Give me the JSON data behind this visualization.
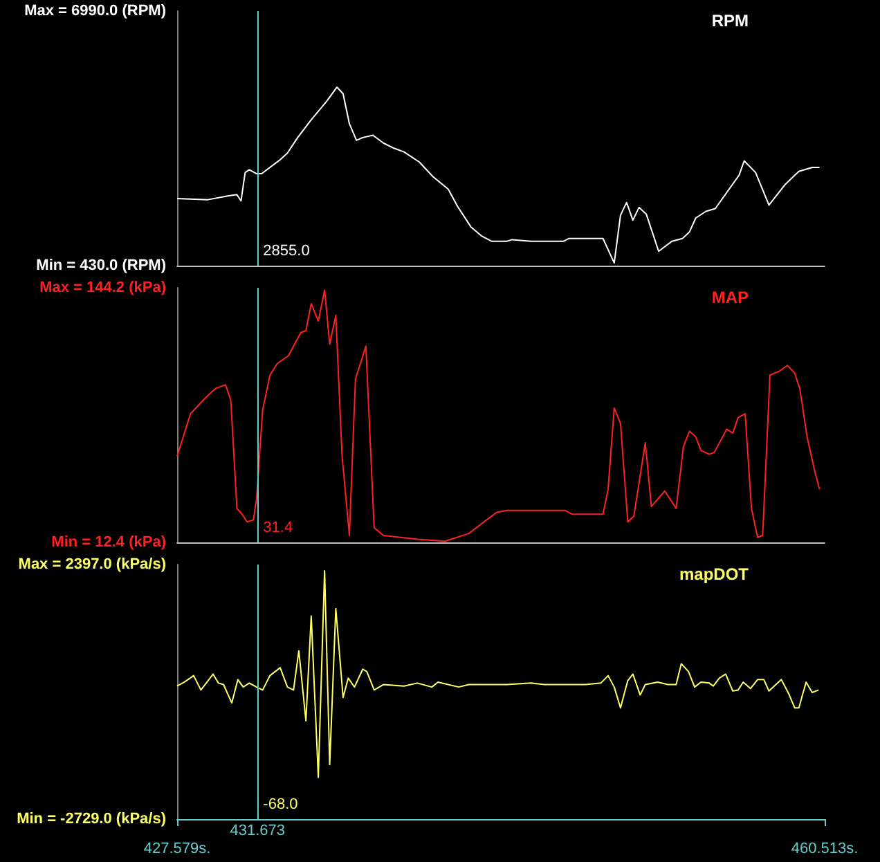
{
  "chart_data": [
    {
      "type": "line",
      "title": "RPM",
      "x": [
        427.58,
        429.15,
        430.2,
        430.62,
        430.83,
        431.04,
        431.25,
        431.62,
        431.88,
        432.82,
        433.19,
        433.71,
        434.4,
        435.18,
        435.71,
        436.02,
        436.34,
        436.7,
        437.02,
        437.54,
        438.07,
        438.59,
        439.12,
        439.9,
        440.58,
        441.37,
        441.84,
        442.52,
        443.05,
        443.57,
        444.36,
        444.62,
        445.57,
        447.24,
        447.51,
        449.24,
        449.81,
        450.13,
        450.44,
        450.76,
        451.07,
        451.44,
        452.07,
        452.75,
        453.28,
        453.64,
        453.96,
        454.48,
        454.95,
        456.16,
        456.42,
        457.0,
        457.68,
        458.52,
        459.2,
        459.88,
        460.25
      ],
      "series": [
        {
          "color": "#ffffff",
          "values": [
            2160,
            2130,
            2230,
            2260,
            2100,
            2830,
            2900,
            2800,
            2800,
            3160,
            3330,
            3730,
            4190,
            4660,
            5030,
            4860,
            4090,
            3660,
            3730,
            3790,
            3590,
            3460,
            3360,
            3100,
            2730,
            2400,
            1960,
            1430,
            1200,
            1060,
            1060,
            1100,
            1060,
            1060,
            1130,
            1130,
            500,
            1730,
            2060,
            1600,
            1930,
            1760,
            800,
            1060,
            1130,
            1300,
            1660,
            1830,
            1900,
            2760,
            3130,
            2830,
            1990,
            2530,
            2860,
            2960,
            2960
          ]
        }
      ],
      "xlim": [
        427.579,
        460.513
      ],
      "ylim": [
        430,
        6990
      ],
      "yticks": [
        {
          "value": 430,
          "label": "Min = 430.0 (RPM)"
        },
        {
          "value": 6990,
          "label": "Max = 6990.0 (RPM)"
        }
      ],
      "tick_labels": "y",
      "ref_lines": [
        {
          "axis": "x",
          "value": 431.673,
          "color": "#66cccc"
        }
      ],
      "annotations": [
        "2855.0"
      ]
    },
    {
      "type": "line",
      "title": "MAP",
      "x": [
        427.58,
        428.26,
        429.0,
        429.52,
        430.04,
        430.31,
        430.62,
        430.88,
        431.14,
        431.46,
        431.62,
        431.93,
        432.3,
        432.67,
        433.24,
        433.87,
        434.13,
        434.4,
        434.76,
        435.08,
        435.34,
        435.65,
        435.97,
        436.34,
        436.65,
        437.18,
        437.6,
        438.07,
        438.96,
        439.8,
        441.21,
        442.42,
        443.31,
        443.84,
        444.36,
        447.3,
        447.66,
        449.24,
        449.5,
        449.81,
        450.13,
        450.5,
        450.81,
        451.39,
        451.7,
        452.38,
        452.96,
        453.33,
        453.64,
        453.96,
        454.22,
        454.64,
        454.9,
        455.53,
        455.84,
        456.11,
        456.47,
        456.79,
        457.1,
        457.36,
        457.73,
        458.2,
        458.62,
        458.99,
        459.25,
        459.62,
        459.99,
        460.25
      ],
      "series": [
        {
          "color": "#ff2020",
          "values": [
            57,
            79,
            87,
            92,
            94,
            86,
            30,
            27,
            23,
            24,
            35,
            81,
            99,
            105,
            109,
            121,
            122,
            136,
            127,
            143,
            115,
            130,
            57,
            16,
            97,
            114,
            20,
            16,
            15,
            14,
            13,
            17,
            24,
            28,
            29,
            29,
            27,
            27,
            40,
            82,
            74,
            23,
            26,
            64,
            31,
            39,
            30,
            62,
            70,
            67,
            60,
            58,
            59,
            71,
            69,
            77,
            79,
            30,
            15,
            16,
            99,
            101,
            104,
            100,
            92,
            67,
            50,
            40
          ]
        }
      ],
      "xlim": [
        427.579,
        460.513
      ],
      "ylim": [
        12.4,
        144.2
      ],
      "yticks": [
        {
          "value": 12.4,
          "label": "Min = 12.4 (kPa)"
        },
        {
          "value": 144.2,
          "label": "Max = 144.2 (kPa)"
        }
      ],
      "tick_labels": "y",
      "ref_lines": [
        {
          "axis": "x",
          "value": 431.673,
          "color": "#66cccc"
        }
      ],
      "annotations": [
        "31.4"
      ]
    },
    {
      "type": "line",
      "title": "mapDOT",
      "x": [
        427.58,
        427.95,
        428.42,
        428.79,
        429.41,
        429.68,
        429.94,
        430.36,
        430.67,
        430.94,
        431.25,
        431.62,
        431.93,
        432.3,
        432.82,
        433.19,
        433.5,
        433.77,
        434.13,
        434.4,
        434.76,
        435.08,
        435.34,
        435.65,
        436.02,
        436.28,
        436.6,
        437.02,
        437.23,
        437.6,
        438.07,
        439.12,
        439.8,
        440.53,
        440.85,
        441.9,
        442.42,
        444.36,
        445.57,
        446.25,
        447.3,
        448.35,
        449.13,
        449.5,
        449.81,
        450.13,
        450.5,
        450.76,
        451.13,
        451.39,
        452.02,
        452.54,
        452.96,
        453.22,
        453.59,
        453.9,
        454.22,
        454.64,
        454.85,
        455.16,
        455.48,
        455.84,
        456.11,
        456.37,
        456.74,
        457.1,
        457.42,
        457.68,
        458.31,
        458.68,
        458.99,
        459.2,
        459.57,
        459.88,
        460.2
      ],
      "series": [
        {
          "color": "#ffff66",
          "values": [
            -50,
            30,
            160,
            -130,
            190,
            10,
            -20,
            -390,
            80,
            -70,
            10,
            -70,
            -130,
            160,
            320,
            -70,
            -130,
            660,
            -750,
            1360,
            -1890,
            2270,
            -1630,
            1510,
            -280,
            110,
            -70,
            290,
            240,
            -130,
            -20,
            -50,
            10,
            -70,
            30,
            -70,
            -20,
            -20,
            10,
            -20,
            -20,
            -20,
            10,
            160,
            -70,
            -490,
            60,
            190,
            -230,
            -20,
            30,
            -20,
            -20,
            400,
            240,
            -70,
            30,
            10,
            -50,
            110,
            190,
            -150,
            -130,
            30,
            -100,
            80,
            80,
            -150,
            80,
            -200,
            -490,
            -490,
            30,
            -180,
            -130
          ]
        }
      ],
      "xlim": [
        427.579,
        460.513
      ],
      "ylim": [
        -2729,
        2397
      ],
      "xticks": [
        {
          "value": 427.579,
          "label": "427.579s."
        },
        {
          "value": 460.513,
          "label": "460.513s."
        }
      ],
      "yticks": [
        {
          "value": -2729,
          "label": "Min = -2729.0 (kPa/s)"
        },
        {
          "value": 2397,
          "label": "Max = 2397.0 (kPa/s)"
        }
      ],
      "ref_lines": [
        {
          "axis": "x",
          "value": 431.673,
          "color": "#66cccc",
          "label": "431.673"
        }
      ],
      "annotations": [
        "-68.0"
      ]
    }
  ]
}
